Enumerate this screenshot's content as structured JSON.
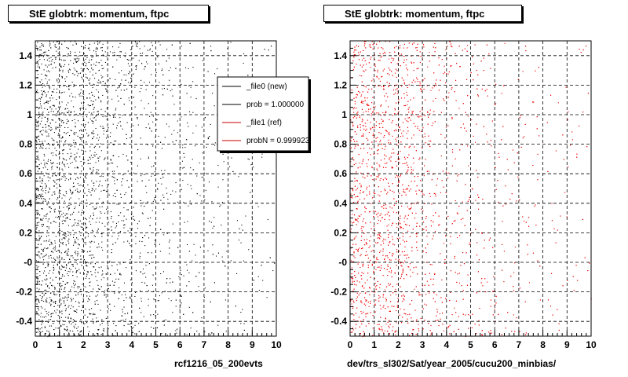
{
  "panels": {
    "left": {
      "title": "StE globtrk: momentum, ftpc",
      "footer": "rcf1216_05_200evts"
    },
    "right": {
      "title": "StE globtrk: momentum, ftpc",
      "footer": "dev/trs_sl302/Sat/year_2005/cucu200_minbias/"
    }
  },
  "legend": {
    "entries": [
      {
        "label": "_file0 (new)",
        "color": "#000000"
      },
      {
        "label": "prob = 1.000000",
        "color": "#000000"
      },
      {
        "label": "_file1 (ref)",
        "color": "#cc0000"
      },
      {
        "label": "probN = 0.999923",
        "color": "#cc0000"
      }
    ]
  },
  "colors": {
    "new": "#000000",
    "ref": "#ee0000",
    "grid": "#000000"
  },
  "chart_data": [
    {
      "type": "scatter",
      "title": "StE globtrk: momentum, ftpc",
      "xlabel": "rcf1216_05_200evts",
      "ylabel": "",
      "xlim": [
        0,
        10
      ],
      "ylim": [
        -0.5,
        1.5
      ],
      "x_ticks": [
        "0",
        "1",
        "2",
        "3",
        "4",
        "5",
        "6",
        "7",
        "8",
        "9",
        "10"
      ],
      "y_ticks": [
        "-0.4",
        "-0.2",
        "-0",
        "0.2",
        "0.4",
        "0.6",
        "0.8",
        "1",
        "1.2",
        "1.4"
      ],
      "grid": true,
      "series": [
        {
          "name": "_file0 (new)",
          "color": "#000000",
          "density_profile": {
            "x": [
              0,
              1,
              2,
              3,
              4,
              5,
              6,
              7,
              8,
              9,
              10
            ],
            "relative_density": [
              1.0,
              0.95,
              0.75,
              0.45,
              0.28,
              0.18,
              0.12,
              0.09,
              0.07,
              0.05,
              0.04
            ]
          }
        }
      ],
      "legend": "top-right"
    },
    {
      "type": "scatter",
      "title": "StE globtrk: momentum, ftpc",
      "xlabel": "dev/trs_sl302/Sat/year_2005/cucu200_minbias/",
      "ylabel": "",
      "xlim": [
        0,
        10
      ],
      "ylim": [
        -0.5,
        1.5
      ],
      "x_ticks": [
        "0",
        "1",
        "2",
        "3",
        "4",
        "5",
        "6",
        "7",
        "8",
        "9",
        "10"
      ],
      "y_ticks": [
        "-0.4",
        "-0.2",
        "-0",
        "0.2",
        "0.4",
        "0.6",
        "0.8",
        "1",
        "1.2",
        "1.4"
      ],
      "grid": true,
      "series": [
        {
          "name": "_file1 (ref)",
          "color": "#ee0000",
          "density_profile": {
            "x": [
              0,
              1,
              2,
              3,
              4,
              5,
              6,
              7,
              8,
              9,
              10
            ],
            "relative_density": [
              1.0,
              0.97,
              0.8,
              0.5,
              0.3,
              0.2,
              0.13,
              0.1,
              0.07,
              0.05,
              0.04
            ]
          }
        }
      ]
    }
  ]
}
